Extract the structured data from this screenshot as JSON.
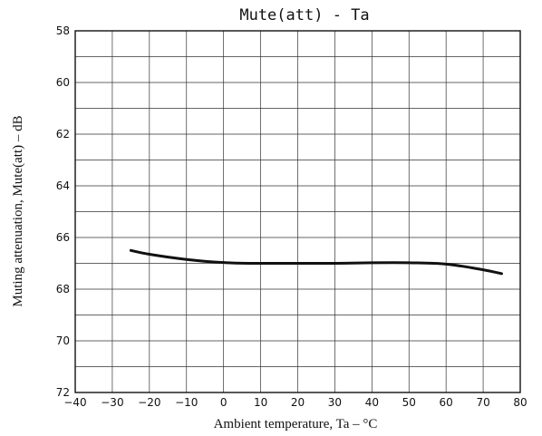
{
  "chart_data": {
    "type": "line",
    "title": "Mute(att) - Ta",
    "xlabel": "Ambient temperature, Ta  –  °C",
    "ylabel": "Muting attenuation, Mute(att)  –  dB",
    "xlim": [
      -40,
      80
    ],
    "ylim": [
      58,
      72
    ],
    "y_inverted": true,
    "grid": true,
    "x_ticks": [
      "−40",
      "−30",
      "−20",
      "−10",
      "0",
      "10",
      "20",
      "30",
      "40",
      "50",
      "60",
      "70",
      "80"
    ],
    "y_ticks": [
      "58",
      "60",
      "62",
      "64",
      "66",
      "68",
      "70",
      "72"
    ],
    "x_tick_values": [
      -40,
      -30,
      -20,
      -10,
      0,
      10,
      20,
      30,
      40,
      50,
      60,
      70,
      80
    ],
    "y_tick_values": [
      58,
      60,
      62,
      64,
      66,
      68,
      70,
      72
    ],
    "series": [
      {
        "x": [
          -25,
          -20,
          -10,
          0,
          10,
          20,
          30,
          40,
          50,
          60,
          70,
          75
        ],
        "y": [
          66.5,
          66.65,
          66.85,
          66.97,
          67.0,
          67.0,
          67.0,
          66.98,
          66.98,
          67.03,
          67.25,
          67.4
        ]
      }
    ]
  }
}
